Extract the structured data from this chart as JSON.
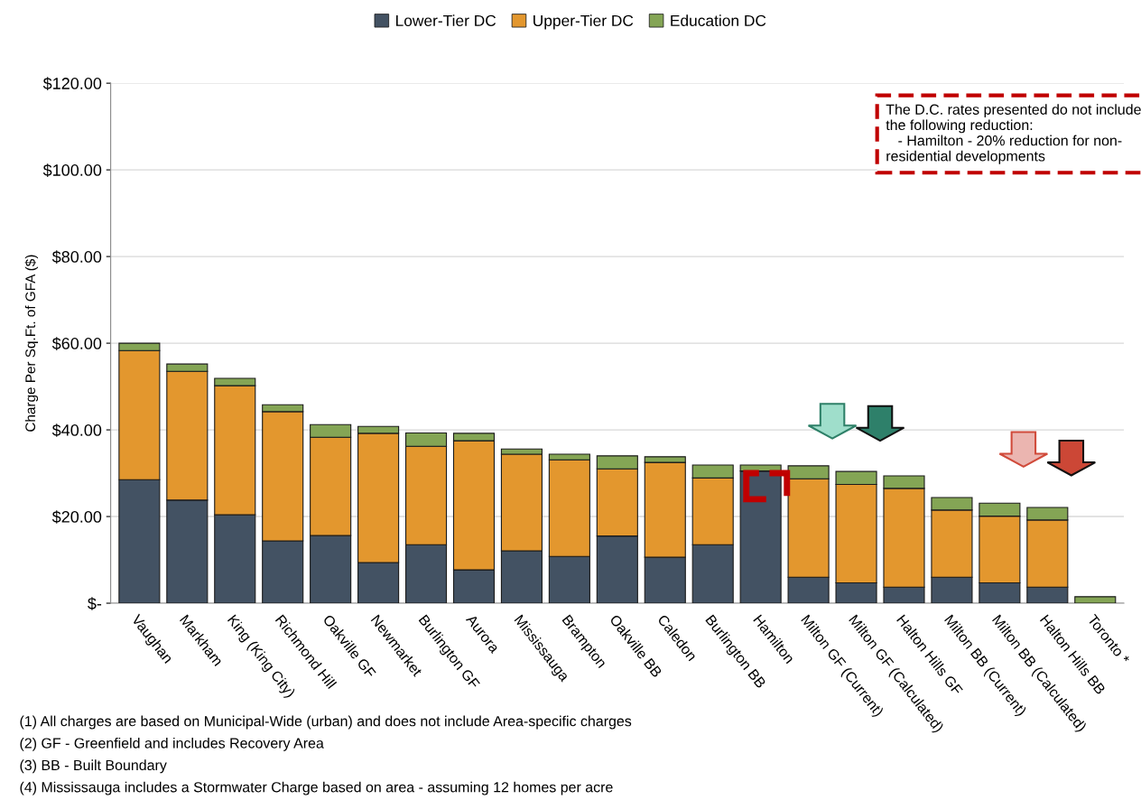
{
  "chart_data": {
    "type": "bar",
    "stacked": true,
    "ylabel": "Charge Per Sq.Ft. of GFA ($)",
    "categories": [
      "Vaughan",
      "Markham",
      "King (King City)",
      "Richmond Hill",
      "Oakville GF",
      "Newmarket",
      "Burlington GF",
      "Aurora",
      "Mississauga",
      "Brampton",
      "Oakville BB",
      "Caledon",
      "Burlington BB",
      "Hamilton",
      "Milton GF (Current)",
      "Milton GF (Calculated)",
      "Halton Hills GF",
      "Milton BB (Current)",
      "Milton BB (Calculated)",
      "Halton Hills BB",
      "Toronto *"
    ],
    "series": [
      {
        "name": "Lower-Tier DC",
        "color": "#435263",
        "values": [
          28.5,
          23.8,
          20.4,
          14.4,
          15.6,
          9.4,
          13.5,
          7.7,
          12.1,
          10.8,
          15.5,
          10.6,
          13.5,
          30.5,
          6.0,
          4.7,
          3.7,
          6.0,
          4.7,
          3.7,
          0
        ]
      },
      {
        "name": "Upper-Tier DC",
        "color": "#e3972e",
        "values": [
          29.8,
          29.7,
          29.8,
          29.8,
          22.7,
          29.8,
          22.7,
          29.8,
          22.3,
          22.3,
          15.5,
          21.9,
          15.4,
          0,
          22.7,
          22.7,
          22.8,
          15.5,
          15.4,
          15.5,
          0
        ]
      },
      {
        "name": "Education DC",
        "color": "#84a555",
        "values": [
          1.7,
          1.7,
          1.7,
          1.6,
          2.9,
          1.6,
          3.1,
          1.7,
          1.2,
          1.3,
          3.0,
          1.3,
          3.0,
          1.4,
          3.0,
          3.0,
          2.9,
          2.9,
          3.0,
          2.9,
          1.5
        ]
      }
    ],
    "ylim": [
      0,
      120
    ],
    "yticks": [
      {
        "value": 0,
        "label": "$-"
      },
      {
        "value": 20,
        "label": "$20.00"
      },
      {
        "value": 40,
        "label": "$40.00"
      },
      {
        "value": 60,
        "label": "$60.00"
      },
      {
        "value": 80,
        "label": "$80.00"
      },
      {
        "value": 100,
        "label": "$100.00"
      },
      {
        "value": 120,
        "label": "$120.00"
      }
    ],
    "grid": "y",
    "legend": "top",
    "annotations": [
      "The D.C. rates presented do not include\nthe following reduction:\n   - Hamilton - 20% reduction for non-\nresidential developments",
      "(1) All charges are based on Municipal-Wide (urban) and does not include Area-specific charges",
      "(2) GF - Greenfield and includes Recovery Area",
      "(3) BB - Built Boundary",
      "(4) Mississauga includes a Stormwater Charge based on area - assuming 12 homes per acre"
    ]
  }
}
